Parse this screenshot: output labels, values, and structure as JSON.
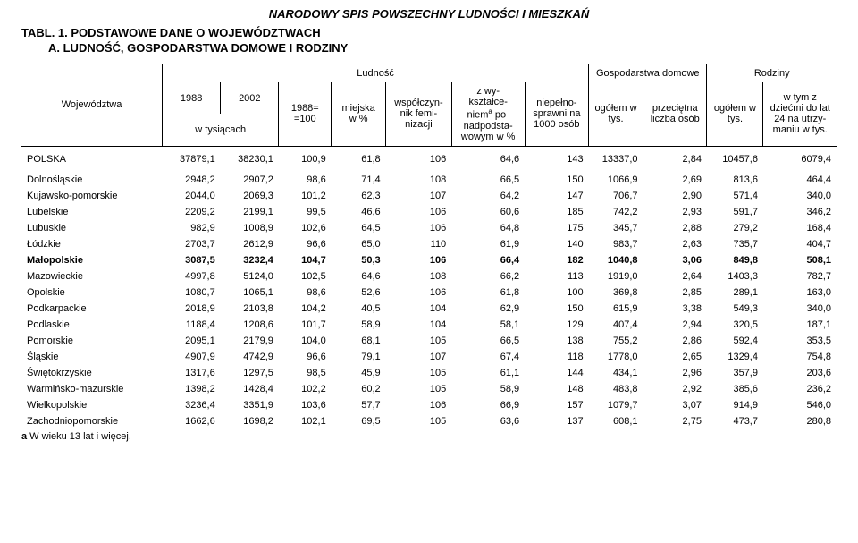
{
  "doc_title": "NARODOWY SPIS POWSZECHNY LUDNOŚCI I MIESZKAŃ",
  "tab_title": "TABL. 1. PODSTAWOWE DANE O WOJEWÓDZTWACH",
  "sub_title": "A. LUDNOŚĆ, GOSPODARSTWA DOMOWE I RODZINY",
  "header": {
    "group_ludnosc": "Ludność",
    "group_gosp": "Gospodarstwa domowe",
    "group_rodziny": "Rodziny",
    "col_woj": "Województwa",
    "col_1988": "1988",
    "col_2002": "2002",
    "col_w_tys": "w tysiącach",
    "col_idx": "1988= =100",
    "col_miejska": "miejska w %",
    "col_wsp": "współczyn- nik femi- nizacji",
    "col_wykszt_pre": "z wy- kształce- niem",
    "col_wykszt_sup": "a",
    "col_wykszt_post": " po- nadpodsta- wowym w %",
    "col_niep": "niepełno- sprawni na 1000 osób",
    "col_gosp_og": "ogółem w tys.",
    "col_gosp_licz": "przeciętna liczba osób",
    "col_rodz_og": "ogółem w tys.",
    "col_rodz_dz": "w tym z dziećmi do lat 24 na utrzy- maniu w tys."
  },
  "rows": [
    {
      "name": "POLSKA",
      "v": [
        "37879,1",
        "38230,1",
        "100,9",
        "61,8",
        "106",
        "64,6",
        "143",
        "13337,0",
        "2,84",
        "10457,6",
        "6079,4"
      ],
      "total": true,
      "bold": false
    },
    {
      "name": "Dolnośląskie",
      "v": [
        "2948,2",
        "2907,2",
        "98,6",
        "71,4",
        "108",
        "66,5",
        "150",
        "1066,9",
        "2,69",
        "813,6",
        "464,4"
      ]
    },
    {
      "name": "Kujawsko-pomorskie",
      "v": [
        "2044,0",
        "2069,3",
        "101,2",
        "62,3",
        "107",
        "64,2",
        "147",
        "706,7",
        "2,90",
        "571,4",
        "340,0"
      ]
    },
    {
      "name": "Lubelskie",
      "v": [
        "2209,2",
        "2199,1",
        "99,5",
        "46,6",
        "106",
        "60,6",
        "185",
        "742,2",
        "2,93",
        "591,7",
        "346,2"
      ]
    },
    {
      "name": "Lubuskie",
      "v": [
        "982,9",
        "1008,9",
        "102,6",
        "64,5",
        "106",
        "64,8",
        "175",
        "345,7",
        "2,88",
        "279,2",
        "168,4"
      ]
    },
    {
      "name": "Łódzkie",
      "v": [
        "2703,7",
        "2612,9",
        "96,6",
        "65,0",
        "110",
        "61,9",
        "140",
        "983,7",
        "2,63",
        "735,7",
        "404,7"
      ]
    },
    {
      "name": "Małopolskie",
      "v": [
        "3087,5",
        "3232,4",
        "104,7",
        "50,3",
        "106",
        "66,4",
        "182",
        "1040,8",
        "3,06",
        "849,8",
        "508,1"
      ],
      "bold": true
    },
    {
      "name": "Mazowieckie",
      "v": [
        "4997,8",
        "5124,0",
        "102,5",
        "64,6",
        "108",
        "66,2",
        "113",
        "1919,0",
        "2,64",
        "1403,3",
        "782,7"
      ]
    },
    {
      "name": "Opolskie",
      "v": [
        "1080,7",
        "1065,1",
        "98,6",
        "52,6",
        "106",
        "61,8",
        "100",
        "369,8",
        "2,85",
        "289,1",
        "163,0"
      ]
    },
    {
      "name": "Podkarpackie",
      "v": [
        "2018,9",
        "2103,8",
        "104,2",
        "40,5",
        "104",
        "62,9",
        "150",
        "615,9",
        "3,38",
        "549,3",
        "340,0"
      ]
    },
    {
      "name": "Podlaskie",
      "v": [
        "1188,4",
        "1208,6",
        "101,7",
        "58,9",
        "104",
        "58,1",
        "129",
        "407,4",
        "2,94",
        "320,5",
        "187,1"
      ]
    },
    {
      "name": "Pomorskie",
      "v": [
        "2095,1",
        "2179,9",
        "104,0",
        "68,1",
        "105",
        "66,5",
        "138",
        "755,2",
        "2,86",
        "592,4",
        "353,5"
      ]
    },
    {
      "name": "Śląskie",
      "v": [
        "4907,9",
        "4742,9",
        "96,6",
        "79,1",
        "107",
        "67,4",
        "118",
        "1778,0",
        "2,65",
        "1329,4",
        "754,8"
      ]
    },
    {
      "name": "Świętokrzyskie",
      "v": [
        "1317,6",
        "1297,5",
        "98,5",
        "45,9",
        "105",
        "61,1",
        "144",
        "434,1",
        "2,96",
        "357,9",
        "203,6"
      ]
    },
    {
      "name": "Warmińsko-mazurskie",
      "v": [
        "1398,2",
        "1428,4",
        "102,2",
        "60,2",
        "105",
        "58,9",
        "148",
        "483,8",
        "2,92",
        "385,6",
        "236,2"
      ]
    },
    {
      "name": "Wielkopolskie",
      "v": [
        "3236,4",
        "3351,9",
        "103,6",
        "57,7",
        "106",
        "66,9",
        "157",
        "1079,7",
        "3,07",
        "914,9",
        "546,0"
      ]
    },
    {
      "name": "Zachodniopomorskie",
      "v": [
        "1662,6",
        "1698,2",
        "102,1",
        "69,5",
        "105",
        "63,6",
        "137",
        "608,1",
        "2,75",
        "473,7",
        "280,8"
      ]
    }
  ],
  "footnote_bold": "a",
  "footnote_text": " W wieku 13 lat i więcej."
}
